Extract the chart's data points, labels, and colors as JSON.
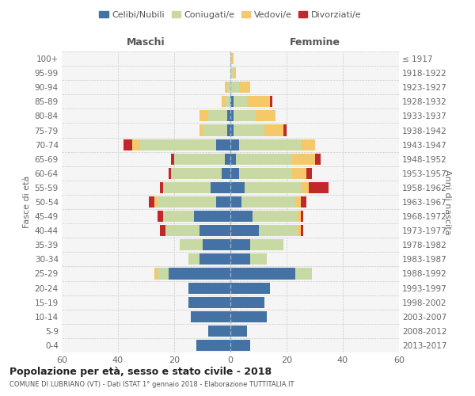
{
  "age_groups": [
    "100+",
    "95-99",
    "90-94",
    "85-89",
    "80-84",
    "75-79",
    "70-74",
    "65-69",
    "60-64",
    "55-59",
    "50-54",
    "45-49",
    "40-44",
    "35-39",
    "30-34",
    "25-29",
    "20-24",
    "15-19",
    "10-14",
    "5-9",
    "0-4"
  ],
  "birth_years": [
    "≤ 1917",
    "1918-1922",
    "1923-1927",
    "1928-1932",
    "1933-1937",
    "1938-1942",
    "1943-1947",
    "1948-1952",
    "1953-1957",
    "1958-1962",
    "1963-1967",
    "1968-1972",
    "1973-1977",
    "1978-1982",
    "1983-1987",
    "1988-1992",
    "1993-1997",
    "1998-2002",
    "2003-2007",
    "2008-2012",
    "2013-2017"
  ],
  "male_celibi": [
    0,
    0,
    0,
    0,
    1,
    1,
    5,
    2,
    3,
    7,
    5,
    13,
    11,
    10,
    11,
    22,
    15,
    15,
    14,
    8,
    12
  ],
  "male_coniugati": [
    0,
    0,
    1,
    2,
    7,
    9,
    27,
    18,
    18,
    17,
    21,
    11,
    12,
    8,
    4,
    4,
    0,
    0,
    0,
    0,
    0
  ],
  "male_vedovi": [
    0,
    0,
    1,
    1,
    3,
    1,
    3,
    0,
    0,
    0,
    1,
    0,
    0,
    0,
    0,
    1,
    0,
    0,
    0,
    0,
    0
  ],
  "male_divorziati": [
    0,
    0,
    0,
    0,
    0,
    0,
    3,
    1,
    1,
    1,
    2,
    2,
    2,
    0,
    0,
    0,
    0,
    0,
    0,
    0,
    0
  ],
  "female_celibi": [
    0,
    0,
    0,
    1,
    1,
    1,
    3,
    2,
    3,
    5,
    4,
    8,
    10,
    7,
    7,
    23,
    14,
    12,
    13,
    6,
    7
  ],
  "female_coniugati": [
    0,
    1,
    3,
    5,
    8,
    11,
    22,
    20,
    19,
    20,
    19,
    16,
    14,
    12,
    6,
    6,
    0,
    0,
    0,
    0,
    0
  ],
  "female_vedovi": [
    1,
    1,
    4,
    8,
    7,
    7,
    5,
    8,
    5,
    3,
    2,
    1,
    1,
    0,
    0,
    0,
    0,
    0,
    0,
    0,
    0
  ],
  "female_divorziati": [
    0,
    0,
    0,
    1,
    0,
    1,
    0,
    2,
    2,
    7,
    2,
    1,
    1,
    0,
    0,
    0,
    0,
    0,
    0,
    0,
    0
  ],
  "colors": {
    "celibi": "#4472A4",
    "coniugati": "#C8D9A4",
    "vedovi": "#F5C96A",
    "divorziati": "#C0282A"
  },
  "title1": "Popolazione per età, sesso e stato civile - 2018",
  "title2": "COMUNE DI LUBRIANO (VT) - Dati ISTAT 1° gennaio 2018 - Elaborazione TUTTITALIA.IT",
  "xlabel_left": "Maschi",
  "xlabel_right": "Femmine",
  "ylabel_left": "Fasce di età",
  "ylabel_right": "Anni di nascita",
  "xlim": 60,
  "legend_labels": [
    "Celibi/Nubili",
    "Coniugati/e",
    "Vedovi/e",
    "Divorziati/e"
  ],
  "bg_color": "#f5f5f5",
  "grid_color": "#cccccc"
}
